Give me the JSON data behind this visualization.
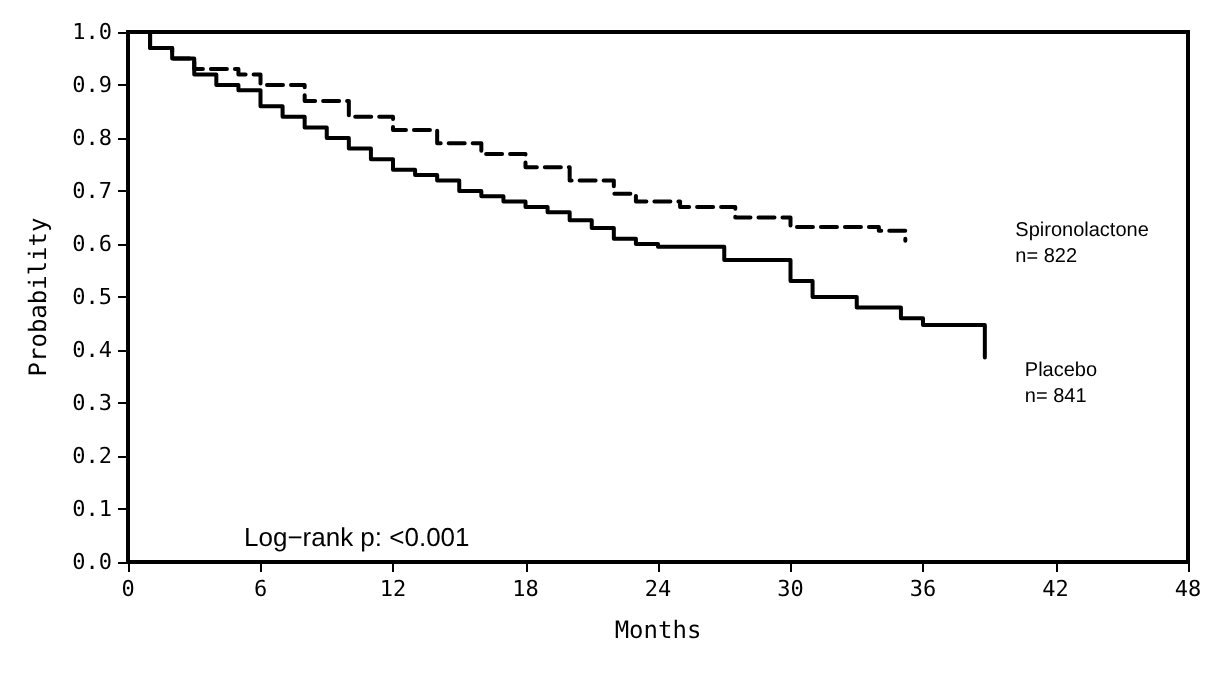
{
  "chart_data": {
    "type": "step",
    "xlabel": "Months",
    "ylabel": "Probability",
    "xlim": [
      0,
      48
    ],
    "xticks": [
      0,
      6,
      12,
      18,
      24,
      30,
      36,
      42,
      48
    ],
    "ylim": [
      0,
      1
    ],
    "yticks": [
      {
        "value": 0,
        "label": "0.0"
      },
      {
        "value": 0.1,
        "label": "0.1"
      },
      {
        "value": 0.2,
        "label": "0.2"
      },
      {
        "value": 0.3,
        "label": "0.3"
      },
      {
        "value": 0.4,
        "label": "0.4"
      },
      {
        "value": 0.5,
        "label": "0.5"
      },
      {
        "value": 0.6,
        "label": "0.6"
      },
      {
        "value": 0.7,
        "label": "0.7"
      },
      {
        "value": 0.8,
        "label": "0.8"
      },
      {
        "value": 0.9,
        "label": "0.9"
      },
      {
        "value": 1,
        "label": "1.0"
      }
    ],
    "grid": false,
    "legend": false,
    "marker": "none",
    "series": [
      {
        "name": "Spironolactone",
        "color": "#000000",
        "line_style": "dashed",
        "x": [
          0,
          1,
          2,
          3,
          5,
          6,
          8,
          10,
          12,
          14,
          16,
          18,
          20,
          22,
          23,
          25,
          27.5,
          30,
          34,
          35.2
        ],
        "values": [
          1.0,
          0.97,
          0.95,
          0.93,
          0.92,
          0.9,
          0.87,
          0.84,
          0.815,
          0.79,
          0.77,
          0.745,
          0.72,
          0.695,
          0.68,
          0.67,
          0.65,
          0.632,
          0.625,
          0.606
        ]
      },
      {
        "name": "Placebo",
        "color": "#000000",
        "line_style": "solid",
        "x": [
          0,
          1,
          2,
          3,
          4,
          5,
          6,
          7,
          8,
          9,
          10,
          11,
          12,
          13,
          14,
          15,
          16,
          17,
          18,
          19,
          20,
          21,
          22,
          23,
          24,
          27,
          30,
          31,
          33,
          35,
          36,
          38.8,
          38.8
        ],
        "values": [
          1.0,
          0.97,
          0.95,
          0.92,
          0.9,
          0.89,
          0.86,
          0.84,
          0.82,
          0.8,
          0.78,
          0.76,
          0.74,
          0.73,
          0.72,
          0.7,
          0.69,
          0.68,
          0.67,
          0.66,
          0.645,
          0.63,
          0.61,
          0.6,
          0.595,
          0.57,
          0.53,
          0.5,
          0.48,
          0.46,
          0.447,
          0.447,
          0.386
        ]
      }
    ],
    "annotations": [
      "n= 822",
      "n= 841",
      "Log−rank p: <0.001"
    ]
  }
}
